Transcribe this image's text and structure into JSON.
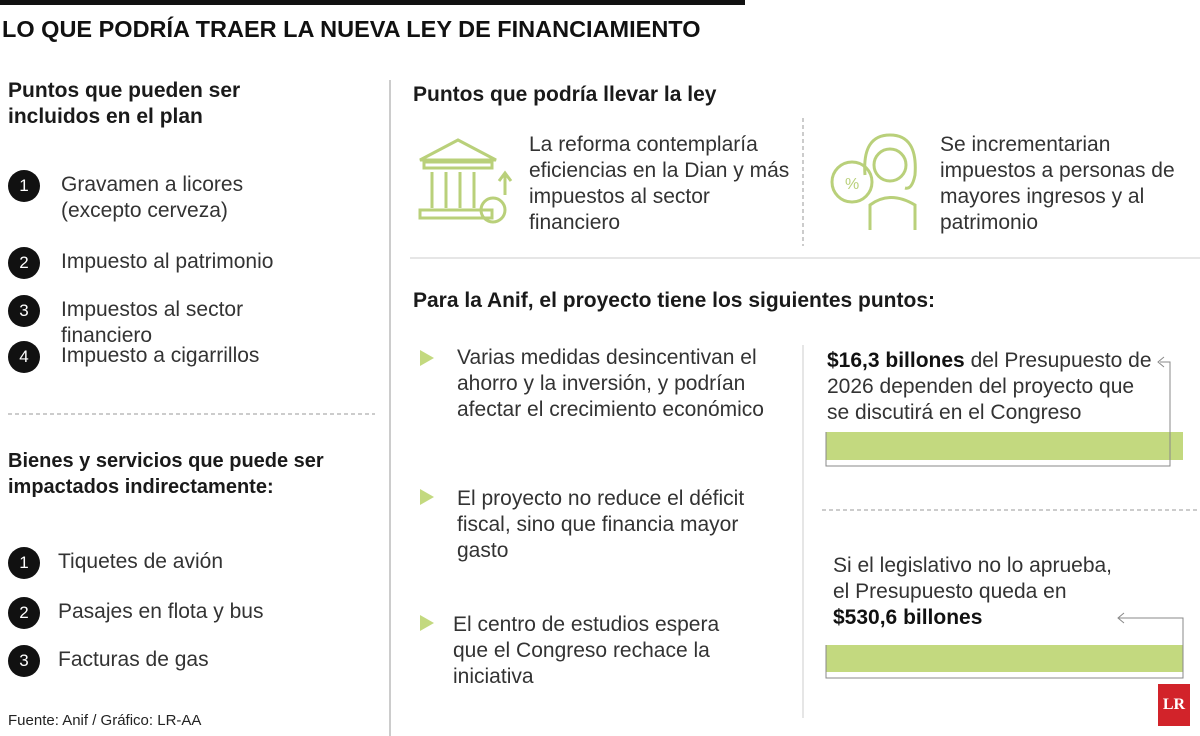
{
  "title": "LO QUE PODRÍA TRAER LA NUEVA LEY DE FINANCIAMIENTO",
  "plan": {
    "heading": "Puntos que pueden ser incluidos en el plan",
    "items": [
      {
        "number": "1",
        "text": "Gravamen a licores (excepto cerveza)"
      },
      {
        "number": "2",
        "text": "Impuesto al patrimonio"
      },
      {
        "number": "3",
        "text": "Impuestos al sector financiero"
      },
      {
        "number": "4",
        "text": "Impuesto a cigarrillos"
      }
    ]
  },
  "goods": {
    "heading": "Bienes y servicios que puede ser impactados indirectamente:",
    "items": [
      {
        "number": "1",
        "text": "Tiquetes de avión"
      },
      {
        "number": "2",
        "text": "Pasajes en flota y bus"
      },
      {
        "number": "3",
        "text": "Facturas de gas"
      }
    ]
  },
  "law": {
    "heading": "Puntos que podría llevar la ley",
    "points": [
      "La reforma contemplaría eficiencias en la Dian y más impuestos al sector financiero",
      "Se incrementarian impuestos a personas de mayores ingresos y al patrimonio"
    ]
  },
  "anif": {
    "heading": "Para la Anif, el proyecto tiene los siguientes puntos:",
    "points": [
      "Varias medidas desincentivan el ahorro y la inversión, y podrían afectar el crecimiento económico",
      "El proyecto no reduce el déficit fiscal, sino que financia mayor gasto",
      "El centro de estudios espera que el Congreso rechace la iniciativa"
    ],
    "facts": [
      {
        "bold": "$16,3 billones",
        "text": " del Presupuesto de 2026 dependen del proyecto que se discutirá en el Congreso"
      },
      {
        "text": "Si el legislativo no lo aprueba, el Presupuesto queda en ",
        "bold": "$530,6 billones"
      }
    ]
  },
  "source": "Fuente: Anif / Gráfico: LR-AA",
  "logo": "LR"
}
